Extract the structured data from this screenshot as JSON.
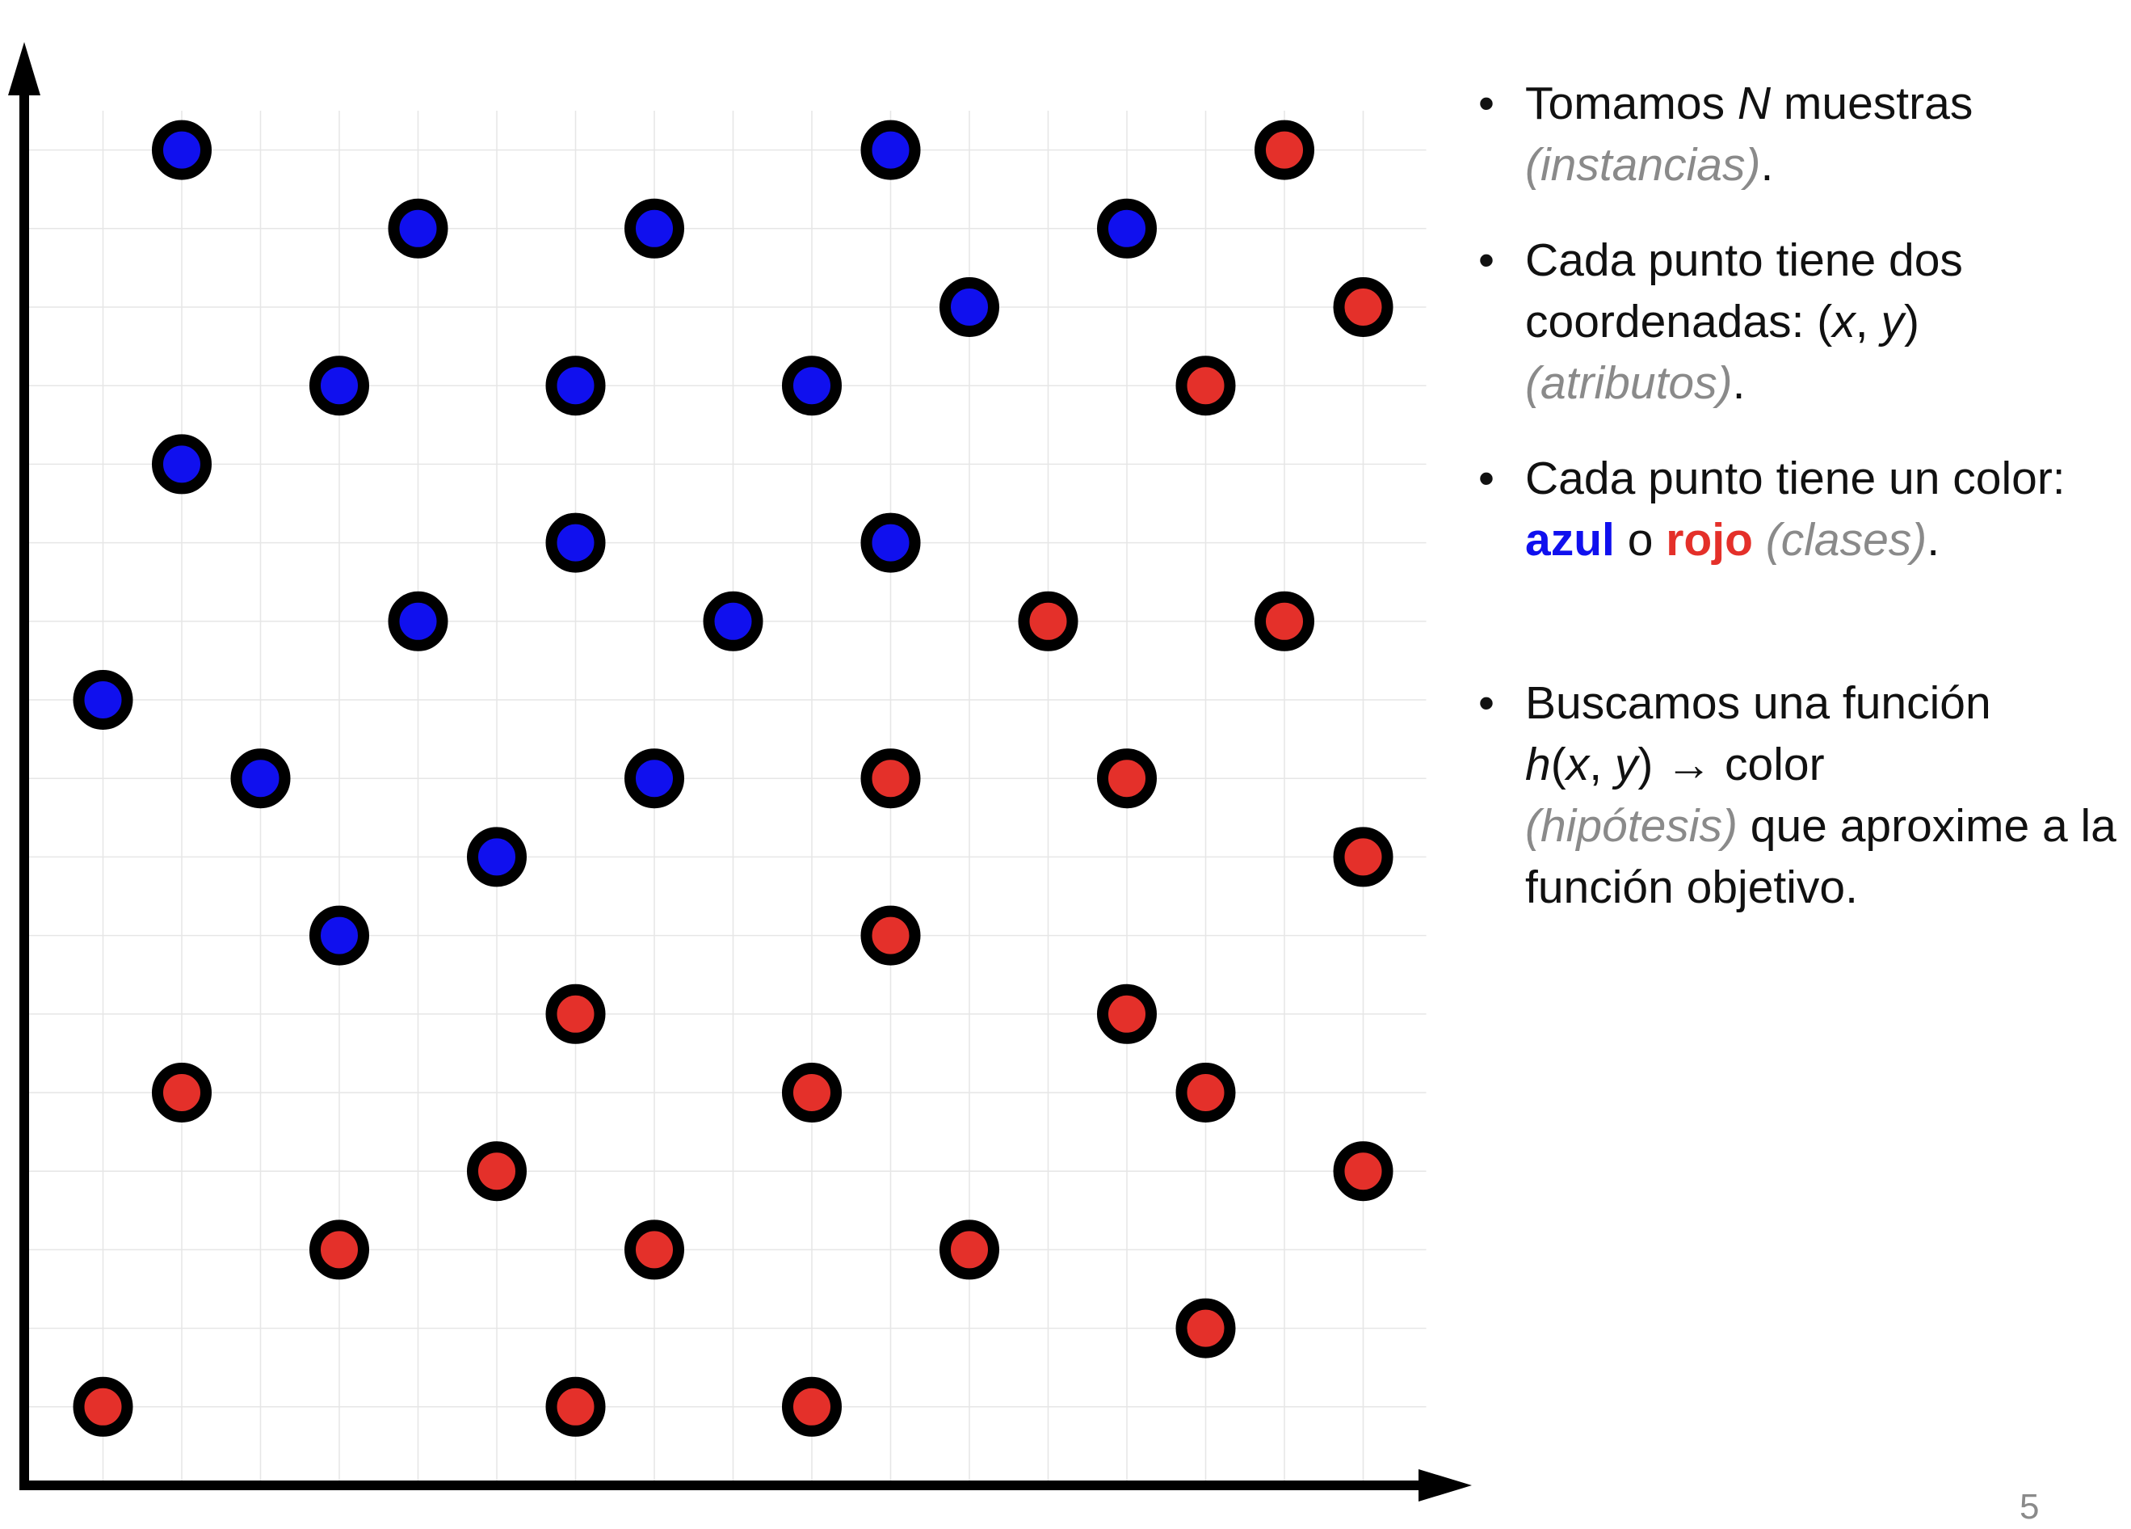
{
  "colors": {
    "azul": "#1010ee",
    "rojo": "#e4302a",
    "muted": "#8a8a8a",
    "axis": "#000000",
    "grid": "#e6e6e6"
  },
  "slide": {
    "page_number": "5",
    "bullets": {
      "b1": {
        "t1": "Tomamos ",
        "n": "N",
        "t2": " muestras",
        "muted": "(instancias)",
        "end": "."
      },
      "b2": {
        "t1": "Cada punto tiene dos coordenadas: (",
        "x": "x",
        "comma": ", ",
        "y": "y",
        "close": ")",
        "muted": "(atributos)",
        "end": "."
      },
      "b3": {
        "t1": "Cada punto tiene un color: ",
        "azul": "azul",
        "o": " o ",
        "rojo": "rojo",
        "muted": "(clases)",
        "end": "."
      },
      "b4": {
        "t1": "Buscamos una función ",
        "h": "h",
        "open": "(",
        "x": "x",
        "comma": ", ",
        "y": "y",
        "close": ") → color",
        "muted": "(hipótesis)",
        "t2": " que aproxime a la función objetivo."
      }
    }
  },
  "chart_data": {
    "type": "scatter",
    "grid": true,
    "xlim": [
      0,
      17
    ],
    "ylim": [
      0,
      17.5
    ],
    "series": [
      {
        "color": "blue",
        "points": [
          [
            2,
            17
          ],
          [
            11,
            17
          ],
          [
            5,
            16
          ],
          [
            8,
            16
          ],
          [
            14,
            16
          ],
          [
            12,
            15
          ],
          [
            4,
            14
          ],
          [
            7,
            14
          ],
          [
            10,
            14
          ],
          [
            2,
            13
          ],
          [
            7,
            12
          ],
          [
            11,
            12
          ],
          [
            5,
            11
          ],
          [
            9,
            11
          ],
          [
            1,
            10
          ],
          [
            3,
            9
          ],
          [
            8,
            9
          ],
          [
            6,
            8
          ],
          [
            4,
            7
          ]
        ]
      },
      {
        "color": "red",
        "points": [
          [
            16,
            17
          ],
          [
            17,
            15
          ],
          [
            15,
            14
          ],
          [
            13,
            11
          ],
          [
            16,
            11
          ],
          [
            11,
            9
          ],
          [
            14,
            9
          ],
          [
            17,
            8
          ],
          [
            11,
            7
          ],
          [
            7,
            6
          ],
          [
            14,
            6
          ],
          [
            2,
            5
          ],
          [
            10,
            5
          ],
          [
            15,
            5
          ],
          [
            6,
            4
          ],
          [
            17,
            4
          ],
          [
            4,
            3
          ],
          [
            8,
            3
          ],
          [
            12,
            3
          ],
          [
            15,
            2
          ],
          [
            1,
            1
          ],
          [
            7,
            1
          ],
          [
            10,
            1
          ]
        ]
      }
    ]
  }
}
